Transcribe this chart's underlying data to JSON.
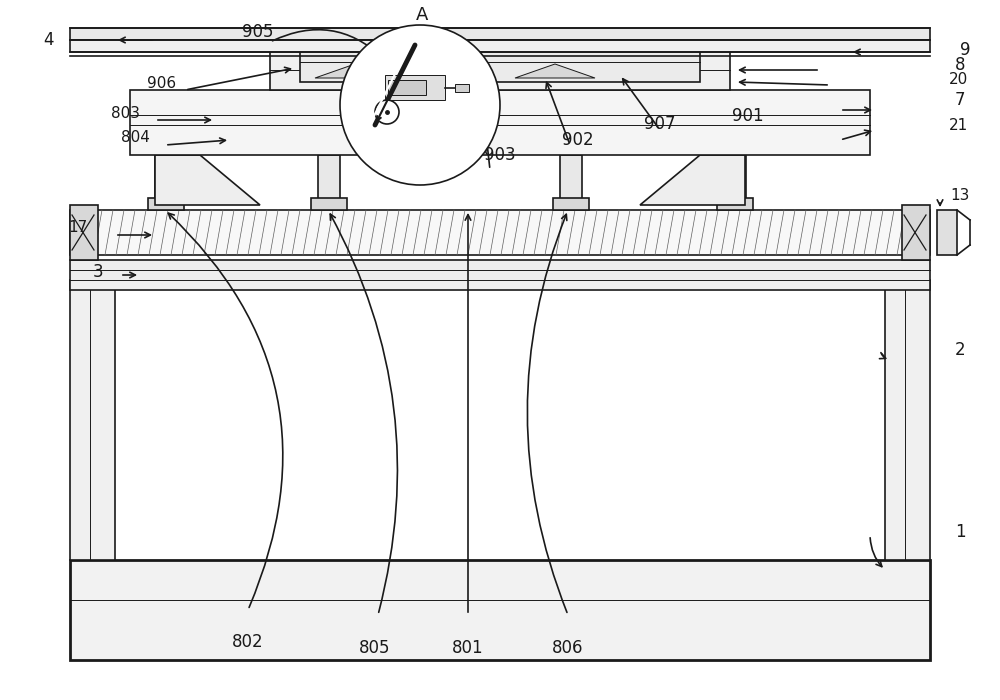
{
  "bg_color": "#ffffff",
  "lc": "#1a1a1a",
  "lw": 1.2,
  "lw_thin": 0.7,
  "lw_thick": 2.0
}
